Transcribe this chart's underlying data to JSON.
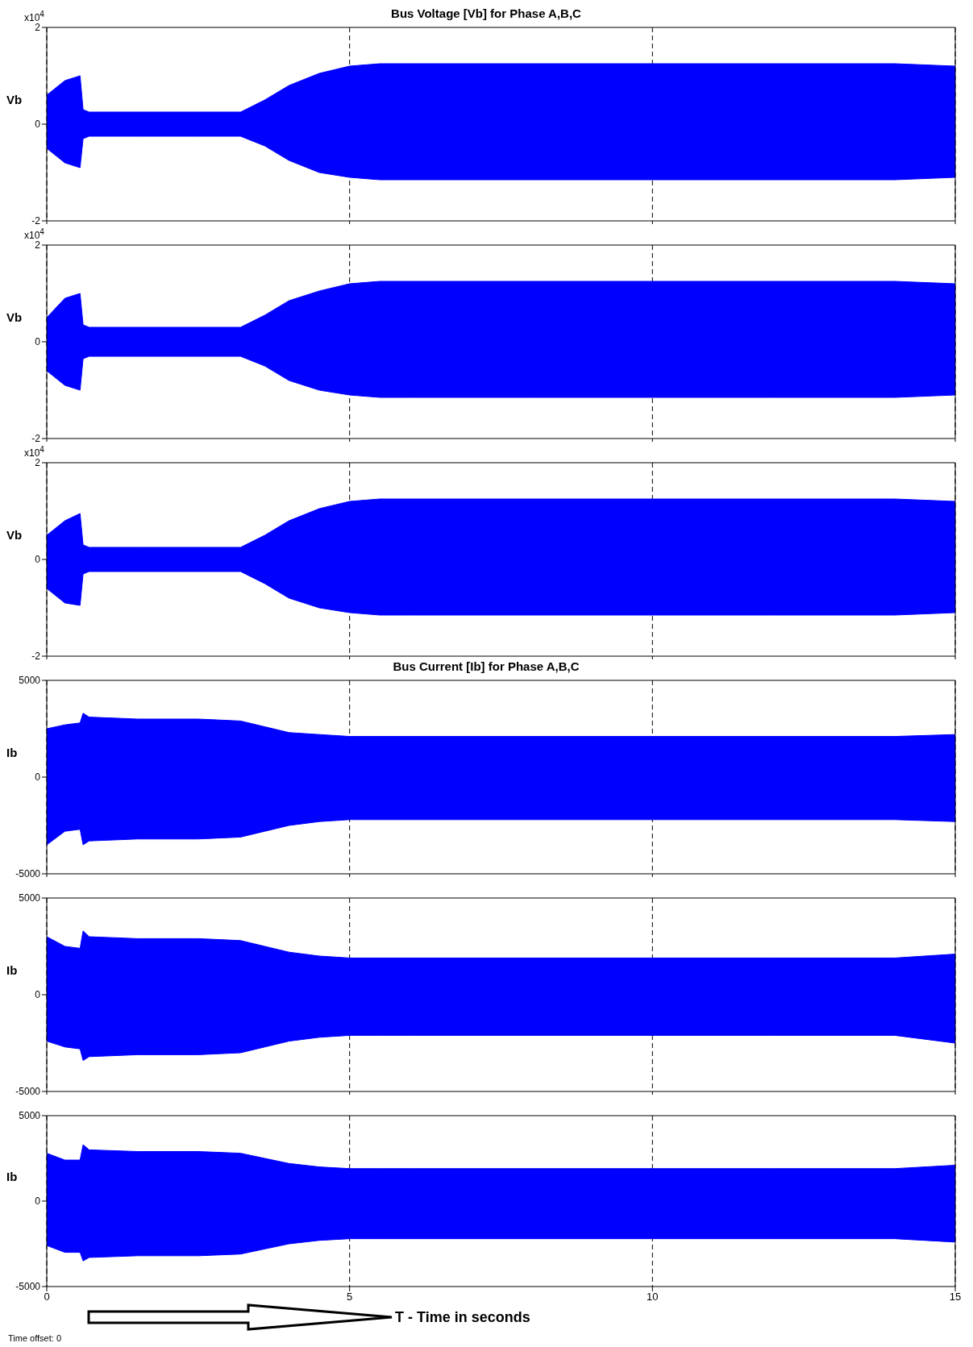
{
  "chart_data": [
    {
      "type": "area",
      "title": "Bus Voltage [Vb] for Phase A,B,C",
      "ylabel": "Vb",
      "annotations": [
        "x10$^{4}$"
      ],
      "xlim": [
        0,
        15
      ],
      "xticks": [
        0,
        5,
        10,
        15
      ],
      "ylim": [
        -2,
        2
      ],
      "yticks": [
        -2,
        0,
        2
      ],
      "tick_labels": "y",
      "grid": "x",
      "x": [
        0,
        0.3,
        0.55,
        0.6,
        0.7,
        1.5,
        2.5,
        3.2,
        3.6,
        4,
        4.5,
        5,
        5.5,
        6,
        8,
        10,
        12,
        14,
        15
      ],
      "series": [
        {
          "color": "#0000ff",
          "values": [
            0.6,
            0.9,
            1.0,
            0.3,
            0.25,
            0.25,
            0.25,
            0.25,
            0.5,
            0.8,
            1.05,
            1.2,
            1.25,
            1.25,
            1.25,
            1.25,
            1.25,
            1.25,
            1.2
          ]
        },
        {
          "color": "#0000ff",
          "values": [
            -0.5,
            -0.8,
            -0.9,
            -0.3,
            -0.25,
            -0.25,
            -0.25,
            -0.25,
            -0.45,
            -0.75,
            -1.0,
            -1.1,
            -1.15,
            -1.15,
            -1.15,
            -1.15,
            -1.15,
            -1.15,
            -1.1
          ]
        }
      ]
    },
    {
      "type": "area",
      "ylabel": "Vb",
      "annotations": [
        "x10$^{4}$"
      ],
      "xlim": [
        0,
        15
      ],
      "xticks": [
        0,
        5,
        10,
        15
      ],
      "ylim": [
        -2,
        2
      ],
      "yticks": [
        -2,
        0,
        2
      ],
      "tick_labels": "y",
      "grid": "x",
      "x": [
        0,
        0.3,
        0.55,
        0.6,
        0.7,
        1.5,
        2.5,
        3.2,
        3.6,
        4,
        4.5,
        5,
        5.5,
        6,
        8,
        10,
        12,
        14,
        15
      ],
      "series": [
        {
          "color": "#0000ff",
          "values": [
            0.5,
            0.9,
            1.0,
            0.35,
            0.3,
            0.3,
            0.3,
            0.3,
            0.55,
            0.85,
            1.05,
            1.2,
            1.25,
            1.25,
            1.25,
            1.25,
            1.25,
            1.25,
            1.2
          ]
        },
        {
          "color": "#0000ff",
          "values": [
            -0.6,
            -0.9,
            -1.0,
            -0.35,
            -0.3,
            -0.3,
            -0.3,
            -0.3,
            -0.5,
            -0.8,
            -1.0,
            -1.1,
            -1.15,
            -1.15,
            -1.15,
            -1.15,
            -1.15,
            -1.15,
            -1.1
          ]
        }
      ]
    },
    {
      "type": "area",
      "ylabel": "Vb",
      "annotations": [
        "x10$^{4}$"
      ],
      "xlim": [
        0,
        15
      ],
      "xticks": [
        0,
        5,
        10,
        15
      ],
      "ylim": [
        -2,
        2
      ],
      "yticks": [
        -2,
        0,
        2
      ],
      "tick_labels": "y",
      "grid": "x",
      "x": [
        0,
        0.3,
        0.55,
        0.6,
        0.7,
        1.5,
        2.5,
        3.2,
        3.6,
        4,
        4.5,
        5,
        5.5,
        6,
        8,
        10,
        12,
        14,
        15
      ],
      "series": [
        {
          "color": "#0000ff",
          "values": [
            0.5,
            0.8,
            0.95,
            0.3,
            0.25,
            0.25,
            0.25,
            0.25,
            0.5,
            0.8,
            1.05,
            1.2,
            1.25,
            1.25,
            1.25,
            1.25,
            1.25,
            1.25,
            1.2
          ]
        },
        {
          "color": "#0000ff",
          "values": [
            -0.6,
            -0.9,
            -0.95,
            -0.3,
            -0.25,
            -0.25,
            -0.25,
            -0.25,
            -0.5,
            -0.8,
            -1.0,
            -1.1,
            -1.15,
            -1.15,
            -1.15,
            -1.15,
            -1.15,
            -1.15,
            -1.1
          ]
        }
      ]
    },
    {
      "type": "area",
      "title": "Bus Current [Ib] for Phase A,B,C",
      "ylabel": "Ib",
      "xlim": [
        0,
        15
      ],
      "xticks": [
        0,
        5,
        10,
        15
      ],
      "ylim": [
        -5000,
        5000
      ],
      "yticks": [
        -5000,
        0,
        5000
      ],
      "tick_labels": "y",
      "grid": "x",
      "x": [
        0,
        0.3,
        0.55,
        0.6,
        0.7,
        1.5,
        2.5,
        3.2,
        3.6,
        4,
        4.5,
        5,
        5.5,
        6,
        8,
        10,
        12,
        14,
        15
      ],
      "series": [
        {
          "color": "#0000ff",
          "values": [
            2500,
            2700,
            2800,
            3300,
            3100,
            3000,
            3000,
            2900,
            2600,
            2300,
            2200,
            2100,
            2100,
            2100,
            2100,
            2100,
            2100,
            2100,
            2200
          ]
        },
        {
          "color": "#0000ff",
          "values": [
            -3500,
            -2800,
            -2700,
            -3500,
            -3300,
            -3200,
            -3200,
            -3100,
            -2800,
            -2500,
            -2300,
            -2200,
            -2200,
            -2200,
            -2200,
            -2200,
            -2200,
            -2200,
            -2300
          ]
        }
      ]
    },
    {
      "type": "area",
      "ylabel": "Ib",
      "xlim": [
        0,
        15
      ],
      "xticks": [
        0,
        5,
        10,
        15
      ],
      "ylim": [
        -5000,
        5000
      ],
      "yticks": [
        -5000,
        0,
        5000
      ],
      "tick_labels": "y",
      "grid": "x",
      "x": [
        0,
        0.3,
        0.55,
        0.6,
        0.7,
        1.5,
        2.5,
        3.2,
        3.6,
        4,
        4.5,
        5,
        5.5,
        6,
        8,
        10,
        12,
        14,
        15
      ],
      "series": [
        {
          "color": "#0000ff",
          "values": [
            3000,
            2500,
            2400,
            3300,
            3000,
            2900,
            2900,
            2800,
            2500,
            2200,
            2000,
            1900,
            1900,
            1900,
            1900,
            1900,
            1900,
            1900,
            2100
          ]
        },
        {
          "color": "#0000ff",
          "values": [
            -2400,
            -2700,
            -2800,
            -3400,
            -3200,
            -3100,
            -3100,
            -3000,
            -2700,
            -2400,
            -2200,
            -2100,
            -2100,
            -2100,
            -2100,
            -2100,
            -2100,
            -2100,
            -2500
          ]
        }
      ]
    },
    {
      "type": "area",
      "ylabel": "Ib",
      "xlabel": "T - Time in seconds",
      "annotations": [
        "Time offset:  0"
      ],
      "xlim": [
        0,
        15
      ],
      "xticks": [
        0,
        5,
        10,
        15
      ],
      "ylim": [
        -5000,
        5000
      ],
      "yticks": [
        -5000,
        0,
        5000
      ],
      "grid": "x",
      "x": [
        0,
        0.3,
        0.55,
        0.6,
        0.7,
        1.5,
        2.5,
        3.2,
        3.6,
        4,
        4.5,
        5,
        5.5,
        6,
        8,
        10,
        12,
        14,
        15
      ],
      "series": [
        {
          "color": "#0000ff",
          "values": [
            2800,
            2400,
            2400,
            3300,
            3000,
            2900,
            2900,
            2800,
            2500,
            2200,
            2000,
            1900,
            1900,
            1900,
            1900,
            1900,
            1900,
            1900,
            2100
          ]
        },
        {
          "color": "#0000ff",
          "values": [
            -2600,
            -3000,
            -3000,
            -3500,
            -3300,
            -3200,
            -3200,
            -3100,
            -2800,
            -2500,
            -2300,
            -2200,
            -2200,
            -2200,
            -2200,
            -2200,
            -2200,
            -2200,
            -2400
          ]
        }
      ]
    }
  ]
}
